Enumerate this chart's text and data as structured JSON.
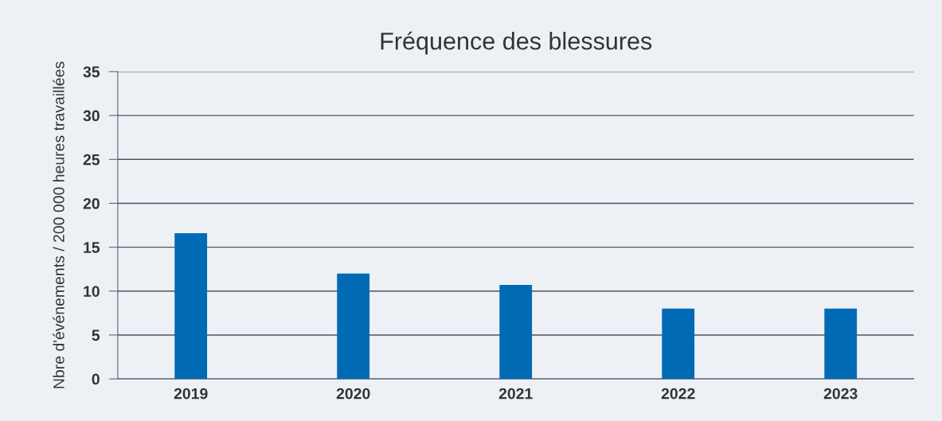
{
  "chart_data": {
    "type": "bar",
    "title": "Fréquence des blessures",
    "ylabel": "Nbre d'événements / 200 000 heures travaillées",
    "categories": [
      "2019",
      "2020",
      "2021",
      "2022",
      "2023"
    ],
    "series": [
      {
        "color": "#006ab5",
        "values": [
          16.6,
          12.0,
          10.7,
          8.0,
          8.0
        ]
      }
    ],
    "ylim": [
      0,
      35
    ],
    "yticks": [
      0,
      5,
      10,
      15,
      20,
      25,
      30,
      35
    ],
    "grid": "y",
    "legend": false
  }
}
